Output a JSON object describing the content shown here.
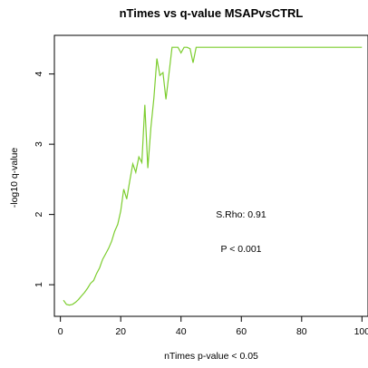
{
  "chart_data": {
    "type": "line",
    "title": "nTimes vs q-value MSAPvsCTRL",
    "xlabel": "nTimes p-value < 0.05",
    "ylabel": "-log10 q-value",
    "xlim": [
      -2,
      102
    ],
    "ylim": [
      0.55,
      4.55
    ],
    "xticks": [
      0,
      20,
      40,
      60,
      80,
      100
    ],
    "yticks": [
      1,
      2,
      3,
      4
    ],
    "line_color": "#7ccd2e",
    "annotations": [
      "S.Rho: 0.91",
      "P < 0.001"
    ],
    "series": [
      {
        "x": [
          1,
          2,
          3,
          4,
          5,
          6,
          7,
          8,
          9,
          10,
          11,
          12,
          13,
          14,
          15,
          16,
          17,
          18,
          19,
          20,
          21,
          22,
          23,
          24,
          25,
          26,
          27,
          28,
          29,
          30,
          31,
          32,
          33,
          34,
          35,
          36,
          37,
          38,
          39,
          40,
          41,
          42,
          43,
          44,
          45,
          46,
          47,
          48,
          49,
          50,
          51,
          52,
          53,
          54,
          55,
          56,
          57,
          58,
          59,
          60,
          61,
          62,
          63,
          64,
          65,
          66,
          67,
          68,
          69,
          70,
          71,
          72,
          73,
          74,
          75,
          76,
          77,
          78,
          79,
          80,
          81,
          82,
          83,
          84,
          85,
          86,
          87,
          88,
          89,
          90,
          91,
          92,
          93,
          94,
          95,
          96,
          97,
          98,
          99,
          100
        ],
        "y": [
          0.78,
          0.72,
          0.71,
          0.72,
          0.75,
          0.79,
          0.84,
          0.89,
          0.95,
          1.02,
          1.06,
          1.16,
          1.24,
          1.36,
          1.44,
          1.52,
          1.62,
          1.76,
          1.86,
          2.05,
          2.36,
          2.22,
          2.48,
          2.72,
          2.6,
          2.82,
          2.74,
          3.56,
          2.66,
          3.24,
          3.66,
          4.22,
          3.98,
          4.02,
          3.64,
          4.0,
          4.38,
          4.38,
          4.38,
          4.3,
          4.38,
          4.38,
          4.36,
          4.16,
          4.38,
          4.38,
          4.38,
          4.38,
          4.38,
          4.38,
          4.38,
          4.38,
          4.38,
          4.38,
          4.38,
          4.38,
          4.38,
          4.38,
          4.38,
          4.38,
          4.38,
          4.38,
          4.38,
          4.38,
          4.38,
          4.38,
          4.38,
          4.38,
          4.38,
          4.38,
          4.38,
          4.38,
          4.38,
          4.38,
          4.38,
          4.38,
          4.38,
          4.38,
          4.38,
          4.38,
          4.38,
          4.38,
          4.38,
          4.38,
          4.38,
          4.38,
          4.38,
          4.38,
          4.38,
          4.38,
          4.38,
          4.38,
          4.38,
          4.38,
          4.38,
          4.38,
          4.38,
          4.38,
          4.38,
          4.38
        ]
      }
    ]
  }
}
